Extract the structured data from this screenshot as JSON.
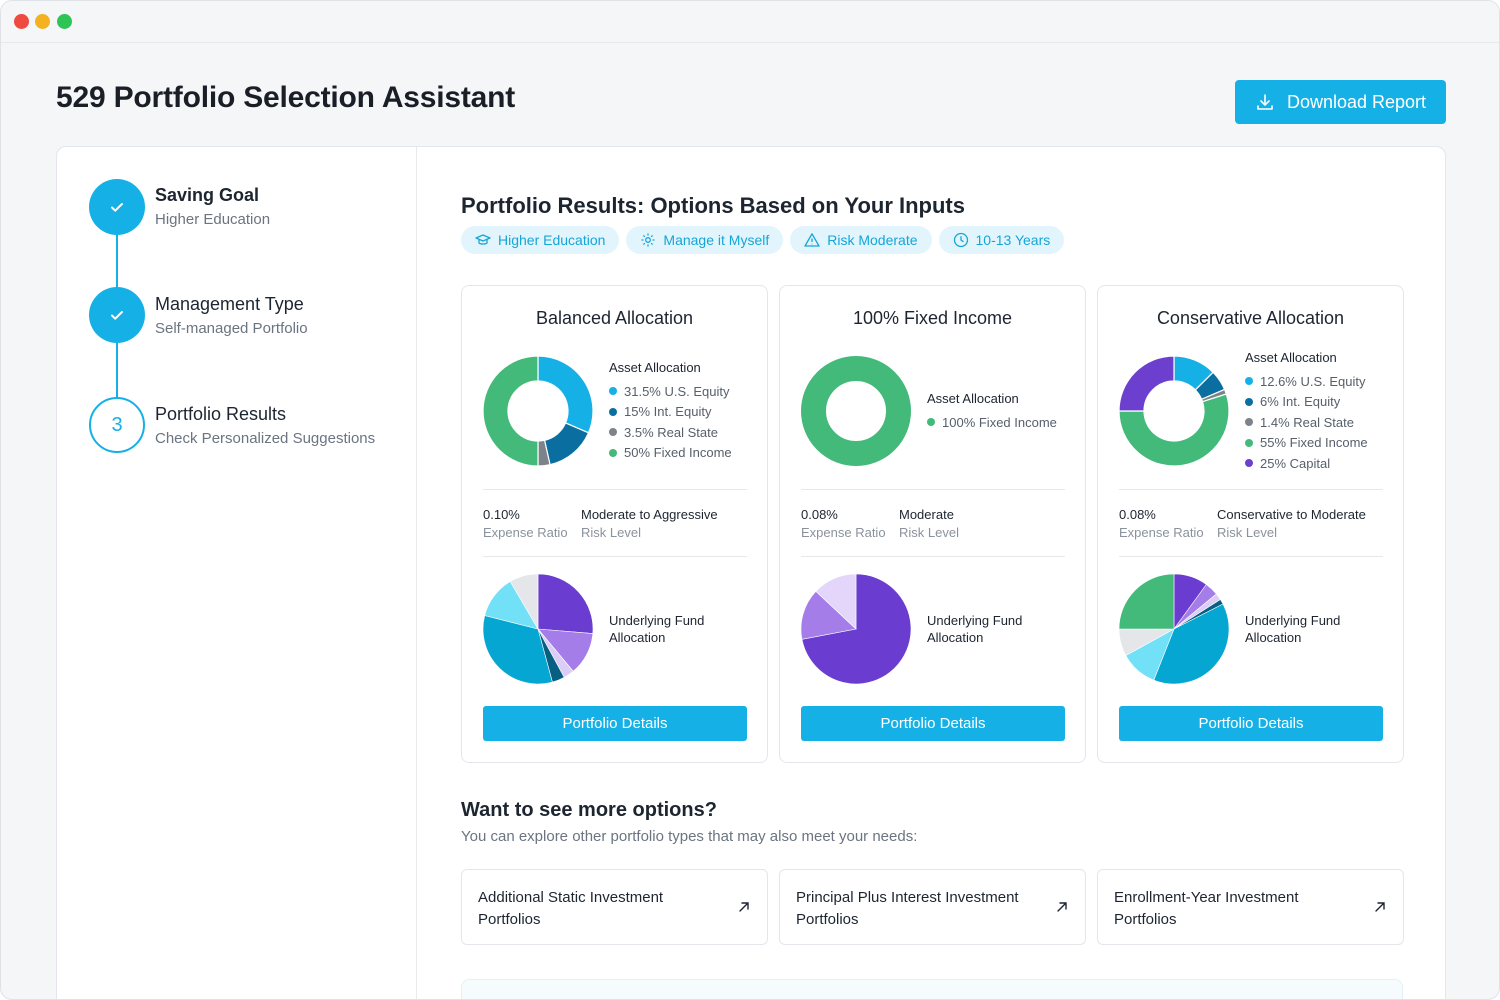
{
  "page_title": "529 Portfolio Selection Assistant",
  "download_button": {
    "label": "Download Report",
    "icon": "download-icon"
  },
  "colors": {
    "accent": "#15b1e6",
    "us_equity": "#15b1e6",
    "int_equity": "#0a6fa0",
    "real_state": "#7d838a",
    "fixed_income": "#43b97a",
    "capital": "#6d3fcf"
  },
  "steps": [
    {
      "number": "1",
      "title": "Saving Goal",
      "subtitle": "Higher Education",
      "status": "done"
    },
    {
      "number": "2",
      "title": "Management Type",
      "subtitle": "Self-managed Portfolio",
      "status": "done"
    },
    {
      "number": "3",
      "title": "Portfolio Results",
      "subtitle": "Check Personalized Suggestions",
      "status": "current"
    }
  ],
  "results": {
    "title": "Portfolio Results: Options Based on Your Inputs",
    "chips": [
      {
        "label": "Higher Education",
        "icon": "graduation-cap-icon"
      },
      {
        "label": "Manage it Myself",
        "icon": "gear-icon"
      },
      {
        "label": "Risk Moderate",
        "icon": "warning-icon"
      },
      {
        "label": "10-13 Years",
        "icon": "clock-icon"
      }
    ]
  },
  "cards": [
    {
      "title": "Balanced Allocation",
      "legend_title": "Asset Allocation",
      "allocation": [
        {
          "label": "31.5% U.S. Equity",
          "percent": 31.5,
          "color": "#15b1e6"
        },
        {
          "label": "15% Int. Equity",
          "percent": 15,
          "color": "#0a6fa0"
        },
        {
          "label": "3.5% Real State",
          "percent": 3.5,
          "color": "#7d838a"
        },
        {
          "label": "50% Fixed Income",
          "percent": 50,
          "color": "#43b97a"
        }
      ],
      "expense_ratio": "0.10%",
      "expense_ratio_label": "Expense Ratio",
      "risk_level": "Moderate to Aggressive",
      "risk_level_label": "Risk Level",
      "fund_label": "Underlying Fund Allocation",
      "fund_slices": [
        {
          "percent": 25,
          "color": "#6a3ccf"
        },
        {
          "percent": 12,
          "color": "#a47de9"
        },
        {
          "percent": 3,
          "color": "#dccdf7"
        },
        {
          "percent": 3.5,
          "color": "#075f82"
        },
        {
          "percent": 31.5,
          "color": "#06a6d2"
        },
        {
          "percent": 12,
          "color": "#72e0f7"
        },
        {
          "percent": 8,
          "color": "#e5e6ea"
        }
      ],
      "button": "Portfolio Details"
    },
    {
      "title": "100% Fixed Income",
      "legend_title": "Asset Allocation",
      "allocation": [
        {
          "label": "100% Fixed Income",
          "percent": 100,
          "color": "#43b97a"
        }
      ],
      "expense_ratio": "0.08%",
      "expense_ratio_label": "Expense Ratio",
      "risk_level": "Moderate",
      "risk_level_label": "Risk Level",
      "fund_label": "Underlying Fund Allocation",
      "fund_slices": [
        {
          "percent": 72,
          "color": "#6a3ccf"
        },
        {
          "percent": 15,
          "color": "#a47de9"
        },
        {
          "percent": 13,
          "color": "#e3d6fa"
        }
      ],
      "button": "Portfolio Details"
    },
    {
      "title": "Conservative Allocation",
      "legend_title": "Asset Allocation",
      "allocation": [
        {
          "label": "12.6% U.S. Equity",
          "percent": 12.6,
          "color": "#15b1e6"
        },
        {
          "label": "6% Int. Equity",
          "percent": 6,
          "color": "#0a6fa0"
        },
        {
          "label": "1.4% Real State",
          "percent": 1.4,
          "color": "#7d838a"
        },
        {
          "label": "55% Fixed Income",
          "percent": 55,
          "color": "#43b97a"
        },
        {
          "label": "25% Capital",
          "percent": 25,
          "color": "#6d3fcf"
        }
      ],
      "expense_ratio": "0.08%",
      "expense_ratio_label": "Expense Ratio",
      "risk_level": "Conservative to Moderate",
      "risk_level_label": "Risk Level",
      "fund_label": "Underlying Fund Allocation",
      "fund_slices": [
        {
          "percent": 10,
          "color": "#6a3ccf"
        },
        {
          "percent": 4,
          "color": "#a47de9"
        },
        {
          "percent": 2,
          "color": "#dccdf7"
        },
        {
          "percent": 1.5,
          "color": "#075f82"
        },
        {
          "percent": 38.5,
          "color": "#06a6d2"
        },
        {
          "percent": 11,
          "color": "#72e0f7"
        },
        {
          "percent": 8,
          "color": "#e5e6ea"
        },
        {
          "percent": 25,
          "color": "#43b97a"
        }
      ],
      "button": "Portfolio Details"
    }
  ],
  "more_options": {
    "title": "Want to see more options?",
    "subtitle": "You can explore other portfolio types that may also meet your needs:",
    "links": [
      {
        "label": "Additional Static Investment Portfolios",
        "icon": "arrow-up-right-icon"
      },
      {
        "label": "Principal Plus Interest Investment Portfolios",
        "icon": "arrow-up-right-icon"
      },
      {
        "label": "Enrollment-Year Investment Portfolios",
        "icon": "arrow-up-right-icon"
      }
    ]
  }
}
